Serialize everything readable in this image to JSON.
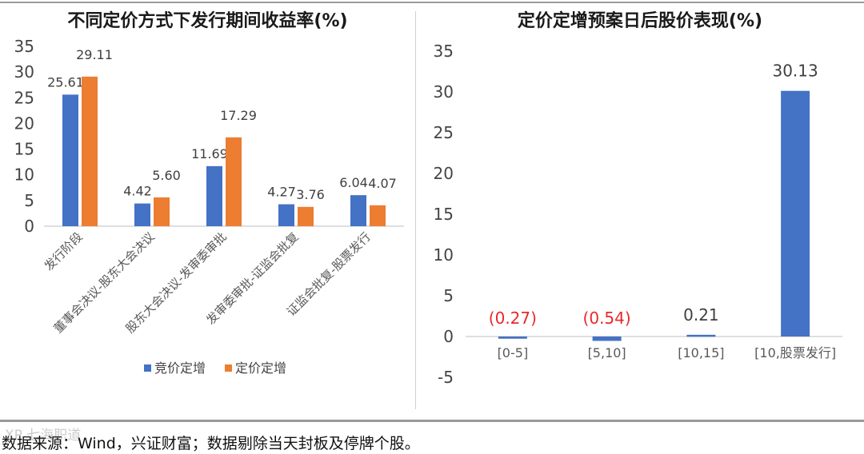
{
  "chart_data": [
    {
      "type": "bar",
      "title": "不同定价方式下发行期间收益率(%)",
      "categories": [
        "发行阶段",
        "董事会决议-股东大会决议",
        "股东大会决议-发审委审批",
        "发审委审批-证监会批复",
        "证监会批复-股票发行"
      ],
      "series": [
        {
          "name": "竞价定增",
          "color": "#4472C4",
          "values": [
            25.61,
            4.42,
            11.69,
            4.27,
            6.04
          ],
          "labels": [
            "25.61",
            "4.42",
            "11.69",
            "4.27",
            "6.04"
          ]
        },
        {
          "name": "定价定增",
          "color": "#ED7D31",
          "values": [
            29.11,
            5.6,
            17.29,
            3.76,
            4.07
          ],
          "labels": [
            "29.11",
            "5.60",
            "17.29",
            "3.76",
            "4.07"
          ]
        }
      ],
      "ylim": [
        0,
        35
      ],
      "yticks": [
        "0",
        "5",
        "10",
        "15",
        "20",
        "25",
        "30",
        "35"
      ],
      "legend_position": "bottom",
      "grid": false
    },
    {
      "type": "bar",
      "title": "定价定增预案日后股价表现(%)",
      "categories": [
        "[0-5]",
        "[5,10]",
        "[10,15]",
        "[10,股票发行]"
      ],
      "series": [
        {
          "color": "#4472C4",
          "values": [
            -0.27,
            -0.54,
            0.21,
            30.13
          ],
          "labels": [
            "(0.27)",
            "(0.54)",
            "0.21",
            "30.13"
          ]
        }
      ],
      "negative_label_color": "#E8292B",
      "ylim": [
        -5,
        35
      ],
      "yticks": [
        "-5",
        "0",
        "5",
        "10",
        "15",
        "20",
        "25",
        "30",
        "35"
      ],
      "grid": false
    }
  ],
  "source_note": "数据来源：Wind，兴证财富；数据剔除当天封板及停牌个股。",
  "watermark": "XP 七海职道"
}
